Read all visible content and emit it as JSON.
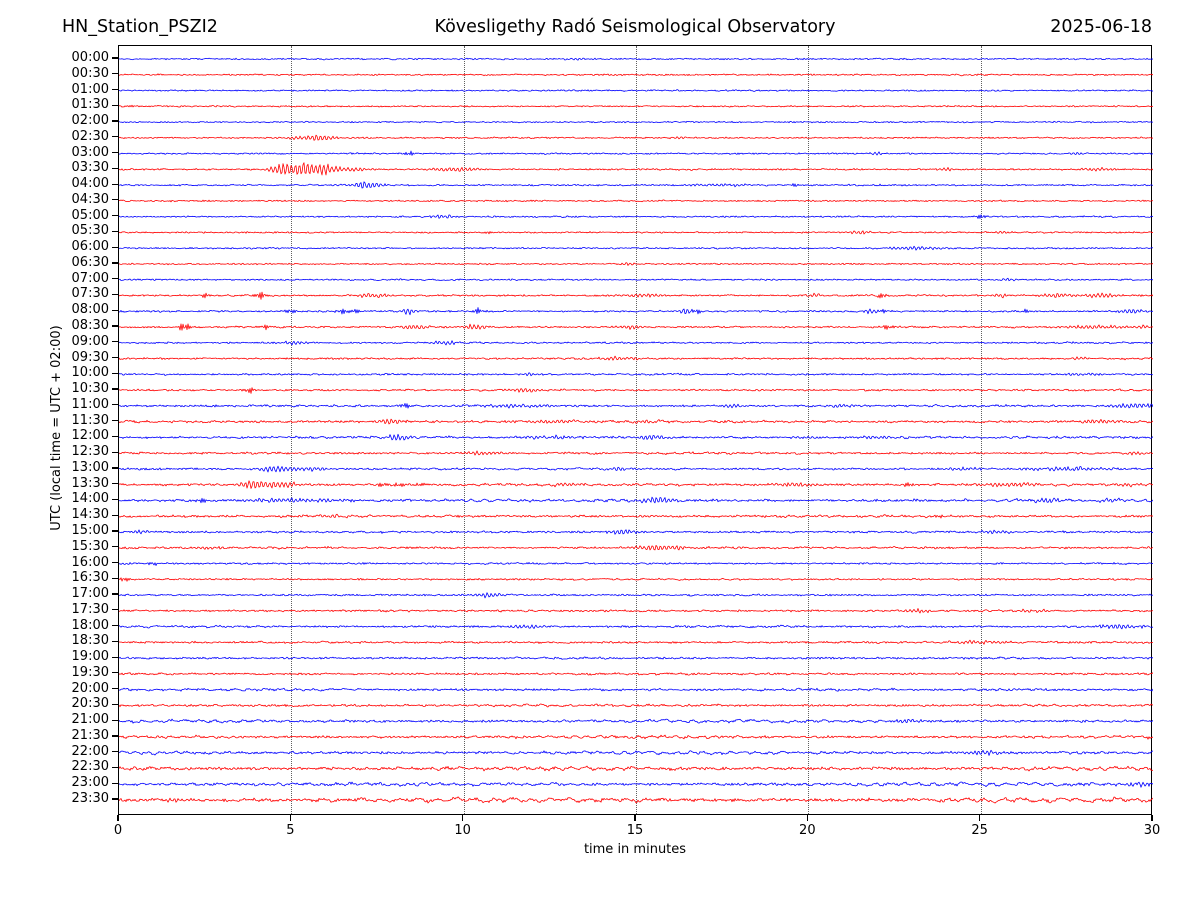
{
  "chart_data": {
    "type": "line",
    "subtype": "helicorder-seismogram",
    "station": "HN_Station_PSZI2",
    "title": "Kövesligethy Radó Seismological Observatory",
    "date": "2025-06-18",
    "xlabel": "time in minutes",
    "ylabel": "UTC (local time = UTC + 02:00)",
    "xlim": [
      0,
      30
    ],
    "x_ticks": [
      0,
      5,
      10,
      15,
      20,
      25,
      30
    ],
    "grid_x": [
      5,
      10,
      15,
      20,
      25
    ],
    "grid_style": "vertical dotted lines every 5 minutes",
    "trace_interval_minutes": 30,
    "trace_color_rule": "full-hour rows blue, half-hour rows red, alternating",
    "colors": {
      "blue_trace": "#0000ff",
      "red_trace": "#ff0000",
      "frame": "#000000"
    },
    "rows": [
      {
        "time": "00:00",
        "color": "#0000ff",
        "noise": 0.7,
        "wiggle": 0.25,
        "events": [
          [
            13.3,
            1.2,
            0.3
          ]
        ]
      },
      {
        "time": "00:30",
        "color": "#ff0000",
        "noise": 0.7,
        "wiggle": 0.25,
        "events": [
          [
            1.2,
            1.4,
            0.1
          ]
        ]
      },
      {
        "time": "01:00",
        "color": "#0000ff",
        "noise": 0.7,
        "wiggle": 0.25,
        "events": []
      },
      {
        "time": "01:30",
        "color": "#ff0000",
        "noise": 0.65,
        "wiggle": 0.2,
        "events": [
          [
            0.3,
            1.4,
            0.08
          ]
        ]
      },
      {
        "time": "02:00",
        "color": "#0000ff",
        "noise": 0.65,
        "wiggle": 0.2,
        "events": []
      },
      {
        "time": "02:30",
        "color": "#ff0000",
        "noise": 0.7,
        "wiggle": 0.25,
        "events": [
          [
            5.3,
            1.8,
            0.5
          ],
          [
            5.9,
            2.4,
            0.25
          ],
          [
            16.3,
            1.6,
            0.15
          ]
        ]
      },
      {
        "time": "03:00",
        "color": "#0000ff",
        "noise": 0.7,
        "wiggle": 0.25,
        "events": [
          [
            8.4,
            3.2,
            0.12
          ],
          [
            22.0,
            1.4,
            0.2
          ],
          [
            27.7,
            1.6,
            0.15
          ]
        ]
      },
      {
        "time": "03:30",
        "color": "#ff0000",
        "noise": 0.75,
        "wiggle": 0.3,
        "events": [
          [
            4.7,
            6.5,
            0.25
          ],
          [
            5.35,
            7.5,
            0.3
          ],
          [
            5.95,
            4.5,
            0.2
          ],
          [
            6.6,
            2.2,
            0.45
          ],
          [
            9.8,
            2.0,
            0.5
          ],
          [
            24.0,
            1.6,
            0.15
          ],
          [
            28.4,
            1.8,
            0.3
          ]
        ]
      },
      {
        "time": "04:00",
        "color": "#0000ff",
        "noise": 0.75,
        "wiggle": 0.3,
        "events": [
          [
            7.05,
            4.2,
            0.15
          ],
          [
            7.4,
            2.6,
            0.2
          ],
          [
            17.5,
            1.4,
            0.6
          ],
          [
            19.6,
            1.4,
            0.1
          ]
        ]
      },
      {
        "time": "04:30",
        "color": "#ff0000",
        "noise": 0.7,
        "wiggle": 0.25,
        "events": []
      },
      {
        "time": "05:00",
        "color": "#0000ff",
        "noise": 0.7,
        "wiggle": 0.25,
        "events": [
          [
            9.4,
            2.3,
            0.25
          ],
          [
            25.0,
            2.6,
            0.12
          ]
        ]
      },
      {
        "time": "05:30",
        "color": "#ff0000",
        "noise": 0.7,
        "wiggle": 0.25,
        "events": [
          [
            10.7,
            1.4,
            0.1
          ],
          [
            21.5,
            1.7,
            0.3
          ],
          [
            25.6,
            1.7,
            0.15
          ]
        ]
      },
      {
        "time": "06:00",
        "color": "#0000ff",
        "noise": 0.7,
        "wiggle": 0.25,
        "events": [
          [
            23.1,
            2.1,
            0.45
          ]
        ]
      },
      {
        "time": "06:30",
        "color": "#ff0000",
        "noise": 0.7,
        "wiggle": 0.25,
        "events": [
          [
            14.8,
            1.2,
            0.2
          ]
        ]
      },
      {
        "time": "07:00",
        "color": "#0000ff",
        "noise": 0.7,
        "wiggle": 0.3,
        "events": [
          [
            25.8,
            1.3,
            0.2
          ]
        ]
      },
      {
        "time": "07:30",
        "color": "#ff0000",
        "noise": 0.8,
        "wiggle": 0.35,
        "events": [
          [
            2.5,
            2.8,
            0.1
          ],
          [
            4.1,
            3.8,
            0.12
          ],
          [
            7.3,
            2.3,
            0.35
          ],
          [
            15.2,
            2.1,
            0.4
          ],
          [
            20.2,
            1.9,
            0.15
          ],
          [
            22.1,
            2.8,
            0.12
          ],
          [
            25.6,
            1.9,
            0.2
          ],
          [
            27.2,
            2.3,
            0.3
          ],
          [
            28.5,
            2.6,
            0.35
          ]
        ]
      },
      {
        "time": "08:00",
        "color": "#0000ff",
        "noise": 0.8,
        "wiggle": 0.35,
        "events": [
          [
            5.0,
            2.4,
            0.12
          ],
          [
            6.5,
            2.8,
            0.1
          ],
          [
            6.85,
            2.8,
            0.1
          ],
          [
            8.4,
            3.8,
            0.15
          ],
          [
            10.4,
            3.3,
            0.12
          ],
          [
            16.4,
            3.3,
            0.15
          ],
          [
            16.75,
            2.4,
            0.1
          ],
          [
            21.8,
            3.3,
            0.15
          ],
          [
            22.15,
            2.4,
            0.1
          ],
          [
            26.3,
            2.1,
            0.1
          ],
          [
            29.4,
            2.4,
            0.3
          ]
        ]
      },
      {
        "time": "08:30",
        "color": "#ff0000",
        "noise": 0.8,
        "wiggle": 0.35,
        "events": [
          [
            1.9,
            4.8,
            0.12
          ],
          [
            4.2,
            2.8,
            0.1
          ],
          [
            8.6,
            2.4,
            0.3
          ],
          [
            10.3,
            2.6,
            0.25
          ],
          [
            14.8,
            2.1,
            0.3
          ],
          [
            22.3,
            2.8,
            0.1
          ],
          [
            28.2,
            1.9,
            0.6
          ],
          [
            29.7,
            1.9,
            0.15
          ]
        ]
      },
      {
        "time": "09:00",
        "color": "#0000ff",
        "noise": 0.8,
        "wiggle": 0.35,
        "events": [
          [
            5.1,
            2.1,
            0.25
          ],
          [
            9.5,
            2.4,
            0.3
          ]
        ]
      },
      {
        "time": "09:30",
        "color": "#ff0000",
        "noise": 0.8,
        "wiggle": 0.35,
        "events": [
          [
            14.6,
            1.9,
            0.5
          ],
          [
            27.9,
            1.4,
            0.2
          ]
        ]
      },
      {
        "time": "10:00",
        "color": "#0000ff",
        "noise": 0.8,
        "wiggle": 0.35,
        "events": [
          [
            12.0,
            1.3,
            0.3
          ],
          [
            28.0,
            1.4,
            0.5
          ]
        ]
      },
      {
        "time": "10:30",
        "color": "#ff0000",
        "noise": 0.8,
        "wiggle": 0.4,
        "events": [
          [
            3.8,
            3.3,
            0.1
          ],
          [
            11.8,
            1.7,
            0.4
          ]
        ]
      },
      {
        "time": "11:00",
        "color": "#0000ff",
        "noise": 0.9,
        "wiggle": 0.5,
        "events": [
          [
            8.3,
            2.6,
            0.12
          ],
          [
            11.5,
            1.7,
            0.8
          ],
          [
            17.8,
            2.1,
            0.25
          ],
          [
            21.0,
            1.9,
            0.3
          ],
          [
            29.5,
            2.8,
            0.5
          ]
        ]
      },
      {
        "time": "11:30",
        "color": "#ff0000",
        "noise": 1.0,
        "wiggle": 0.8,
        "events": [
          [
            7.9,
            3.3,
            0.25
          ],
          [
            12.5,
            1.7,
            0.6
          ],
          [
            15.3,
            1.4,
            0.3
          ],
          [
            28.5,
            1.8,
            0.5
          ]
        ]
      },
      {
        "time": "12:00",
        "color": "#0000ff",
        "noise": 1.0,
        "wiggle": 0.7,
        "events": [
          [
            8.1,
            3.6,
            0.25
          ],
          [
            12.5,
            1.7,
            0.7
          ],
          [
            15.4,
            2.1,
            0.3
          ],
          [
            22.0,
            1.4,
            0.4
          ]
        ]
      },
      {
        "time": "12:30",
        "color": "#ff0000",
        "noise": 0.9,
        "wiggle": 0.6,
        "events": [
          [
            10.5,
            1.4,
            0.4
          ],
          [
            29.5,
            1.5,
            0.2
          ]
        ]
      },
      {
        "time": "13:00",
        "color": "#0000ff",
        "noise": 0.9,
        "wiggle": 0.6,
        "events": [
          [
            4.5,
            3.0,
            0.3
          ],
          [
            5.5,
            1.9,
            0.6
          ],
          [
            14.5,
            1.6,
            0.4
          ],
          [
            24.5,
            1.7,
            0.4
          ],
          [
            27.5,
            1.9,
            0.8
          ]
        ]
      },
      {
        "time": "13:30",
        "color": "#ff0000",
        "noise": 1.0,
        "wiggle": 0.8,
        "events": [
          [
            3.9,
            4.3,
            0.35
          ],
          [
            4.8,
            2.4,
            0.5
          ],
          [
            7.6,
            2.4,
            0.12
          ],
          [
            8.1,
            2.1,
            0.1
          ],
          [
            8.7,
            1.9,
            0.1
          ],
          [
            13.0,
            1.7,
            0.4
          ],
          [
            19.5,
            1.9,
            0.6
          ],
          [
            22.9,
            2.4,
            0.1
          ],
          [
            25.8,
            2.0,
            0.7
          ],
          [
            29.4,
            1.9,
            0.2
          ]
        ]
      },
      {
        "time": "14:00",
        "color": "#0000ff",
        "noise": 1.1,
        "wiggle": 1.0,
        "events": [
          [
            2.4,
            2.8,
            0.1
          ],
          [
            5.0,
            1.9,
            1.2
          ],
          [
            15.6,
            3.6,
            0.35
          ],
          [
            26.9,
            2.4,
            0.3
          ],
          [
            28.8,
            2.1,
            0.3
          ]
        ]
      },
      {
        "time": "14:30",
        "color": "#ff0000",
        "noise": 1.0,
        "wiggle": 0.7,
        "events": [
          [
            6.4,
            1.7,
            0.3
          ],
          [
            23.8,
            2.6,
            0.1
          ]
        ]
      },
      {
        "time": "15:00",
        "color": "#0000ff",
        "noise": 0.9,
        "wiggle": 0.5,
        "events": [
          [
            0.6,
            1.9,
            0.2
          ],
          [
            14.6,
            3.3,
            0.3
          ],
          [
            25.4,
            1.9,
            0.3
          ]
        ]
      },
      {
        "time": "15:30",
        "color": "#ff0000",
        "noise": 0.9,
        "wiggle": 0.5,
        "events": [
          [
            2.7,
            1.7,
            0.3
          ],
          [
            15.7,
            3.0,
            0.55
          ]
        ]
      },
      {
        "time": "16:00",
        "color": "#0000ff",
        "noise": 0.8,
        "wiggle": 0.35,
        "events": [
          [
            1.0,
            2.4,
            0.1
          ]
        ]
      },
      {
        "time": "16:30",
        "color": "#ff0000",
        "noise": 0.8,
        "wiggle": 0.35,
        "events": [
          [
            0.15,
            2.6,
            0.1
          ]
        ]
      },
      {
        "time": "17:00",
        "color": "#0000ff",
        "noise": 0.8,
        "wiggle": 0.4,
        "events": [
          [
            10.7,
            3.0,
            0.3
          ]
        ]
      },
      {
        "time": "17:30",
        "color": "#ff0000",
        "noise": 0.9,
        "wiggle": 0.5,
        "events": [
          [
            23.2,
            1.9,
            0.3
          ],
          [
            26.5,
            1.7,
            0.3
          ]
        ]
      },
      {
        "time": "18:00",
        "color": "#0000ff",
        "noise": 0.9,
        "wiggle": 0.6,
        "events": [
          [
            11.8,
            1.9,
            0.4
          ],
          [
            29.0,
            2.4,
            0.5
          ]
        ]
      },
      {
        "time": "18:30",
        "color": "#ff0000",
        "noise": 0.9,
        "wiggle": 0.5,
        "events": [
          [
            25.0,
            1.9,
            0.6
          ]
        ]
      },
      {
        "time": "19:00",
        "color": "#0000ff",
        "noise": 0.9,
        "wiggle": 0.5,
        "events": []
      },
      {
        "time": "19:30",
        "color": "#ff0000",
        "noise": 0.9,
        "wiggle": 0.6,
        "events": []
      },
      {
        "time": "20:00",
        "color": "#0000ff",
        "noise": 1.0,
        "wiggle": 0.8,
        "events": []
      },
      {
        "time": "20:30",
        "color": "#ff0000",
        "noise": 1.0,
        "wiggle": 0.8,
        "events": []
      },
      {
        "time": "21:00",
        "color": "#0000ff",
        "noise": 1.1,
        "wiggle": 1.2,
        "events": [
          [
            22.9,
            2.1,
            0.3
          ]
        ]
      },
      {
        "time": "21:30",
        "color": "#ff0000",
        "noise": 1.1,
        "wiggle": 1.2,
        "events": []
      },
      {
        "time": "22:00",
        "color": "#0000ff",
        "noise": 1.1,
        "wiggle": 1.3,
        "events": [
          [
            25.0,
            1.9,
            0.6
          ]
        ]
      },
      {
        "time": "22:30",
        "color": "#ff0000",
        "noise": 1.3,
        "wiggle": 1.6,
        "events": []
      },
      {
        "time": "23:00",
        "color": "#0000ff",
        "noise": 1.2,
        "wiggle": 1.4,
        "events": [
          [
            29.5,
            2.4,
            0.4
          ]
        ]
      },
      {
        "time": "23:30",
        "color": "#ff0000",
        "noise": 1.5,
        "wiggle": 2.2,
        "events": [
          [
            1.6,
            2.8,
            0.15
          ]
        ]
      }
    ]
  }
}
